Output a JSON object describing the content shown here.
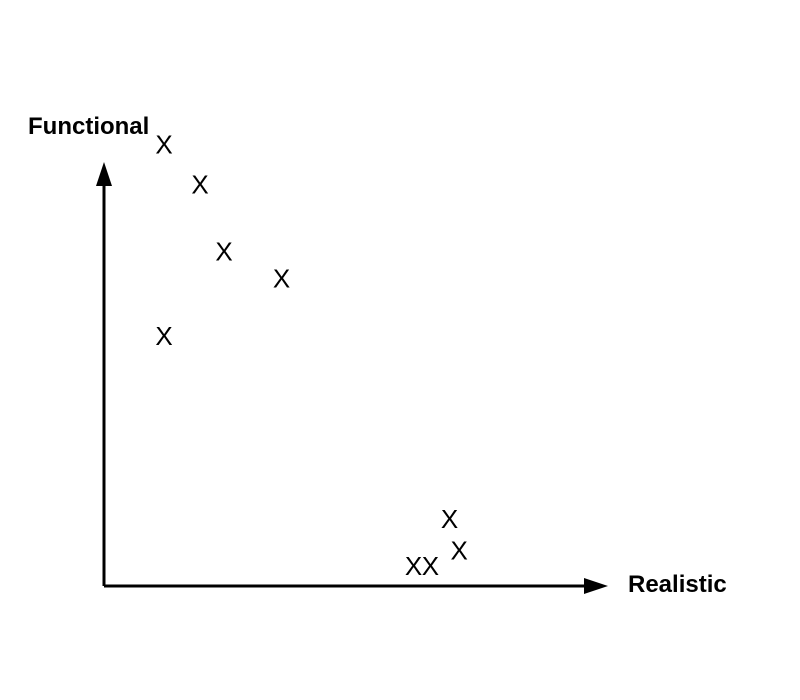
{
  "chart_data": {
    "type": "scatter",
    "xlabel": "Realistic",
    "ylabel": "Functional",
    "marker": "X",
    "grid": false,
    "xlim": [
      0,
      10
    ],
    "ylim": [
      0,
      10
    ],
    "series": [
      {
        "points": [
          {
            "x": 1.25,
            "y": 9.9
          },
          {
            "x": 2.0,
            "y": 9.0
          },
          {
            "x": 2.5,
            "y": 7.5
          },
          {
            "x": 3.7,
            "y": 6.9
          },
          {
            "x": 1.25,
            "y": 5.6
          },
          {
            "x": 7.2,
            "y": 1.5
          },
          {
            "x": 7.4,
            "y": 0.8
          },
          {
            "x": 6.45,
            "y": 0.45
          },
          {
            "x": 6.8,
            "y": 0.45
          }
        ]
      }
    ]
  },
  "colors": {
    "ink": "#000000",
    "background": "#ffffff"
  }
}
